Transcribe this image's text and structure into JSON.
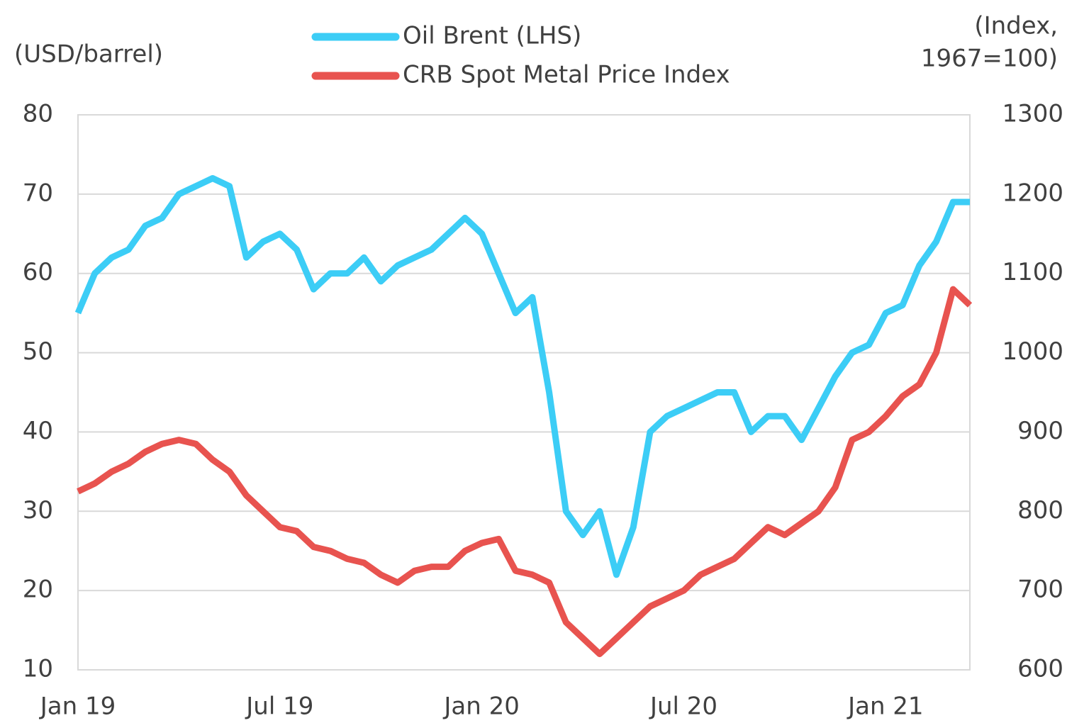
{
  "chart_data": {
    "type": "line",
    "ylabel": "(USD/barrel)",
    "y2label": [
      "(Index,",
      "1967=100)"
    ],
    "categories": [
      "Jan 19",
      null,
      null,
      null,
      null,
      null,
      null,
      null,
      null,
      null,
      null,
      null,
      "Jul 19",
      null,
      null,
      null,
      null,
      null,
      null,
      null,
      null,
      null,
      null,
      null,
      "Jan 20",
      null,
      null,
      null,
      null,
      null,
      null,
      null,
      null,
      null,
      null,
      null,
      "Jul 20",
      null,
      null,
      null,
      null,
      null,
      null,
      null,
      null,
      null,
      null,
      null,
      "Jan 21",
      null,
      null,
      null,
      null,
      null
    ],
    "series": [
      {
        "name": "Oil Brent (LHS)",
        "color": "#3ccdf6",
        "axis": "y",
        "values": [
          55,
          60,
          62,
          63,
          66,
          67,
          70,
          71,
          72,
          71,
          62,
          64,
          65,
          63,
          58,
          60,
          60,
          62,
          59,
          61,
          62,
          63,
          65,
          67,
          65,
          60,
          55,
          57,
          45,
          30,
          27,
          30,
          22,
          28,
          40,
          42,
          43,
          44,
          45,
          45,
          40,
          42,
          42,
          39,
          43,
          47,
          50,
          51,
          55,
          56,
          61,
          64,
          69,
          69
        ]
      },
      {
        "name": "CRB Spot Metal Price Index",
        "color": "#e8534f",
        "axis": "y2",
        "values": [
          825,
          835,
          850,
          860,
          875,
          885,
          890,
          885,
          865,
          850,
          820,
          800,
          780,
          775,
          755,
          750,
          740,
          735,
          720,
          710,
          725,
          730,
          730,
          750,
          760,
          765,
          725,
          720,
          710,
          660,
          640,
          620,
          640,
          660,
          680,
          690,
          700,
          720,
          730,
          740,
          760,
          780,
          770,
          785,
          800,
          830,
          890,
          900,
          920,
          945,
          960,
          1000,
          1080,
          1060
        ]
      }
    ],
    "ylim": [
      10,
      80
    ],
    "yticks": [
      10,
      20,
      30,
      40,
      50,
      60,
      70,
      80
    ],
    "y2lim": [
      600,
      1300
    ],
    "y2ticks": [
      600,
      700,
      800,
      900,
      1000,
      1100,
      1200,
      1300
    ],
    "grid": true
  }
}
